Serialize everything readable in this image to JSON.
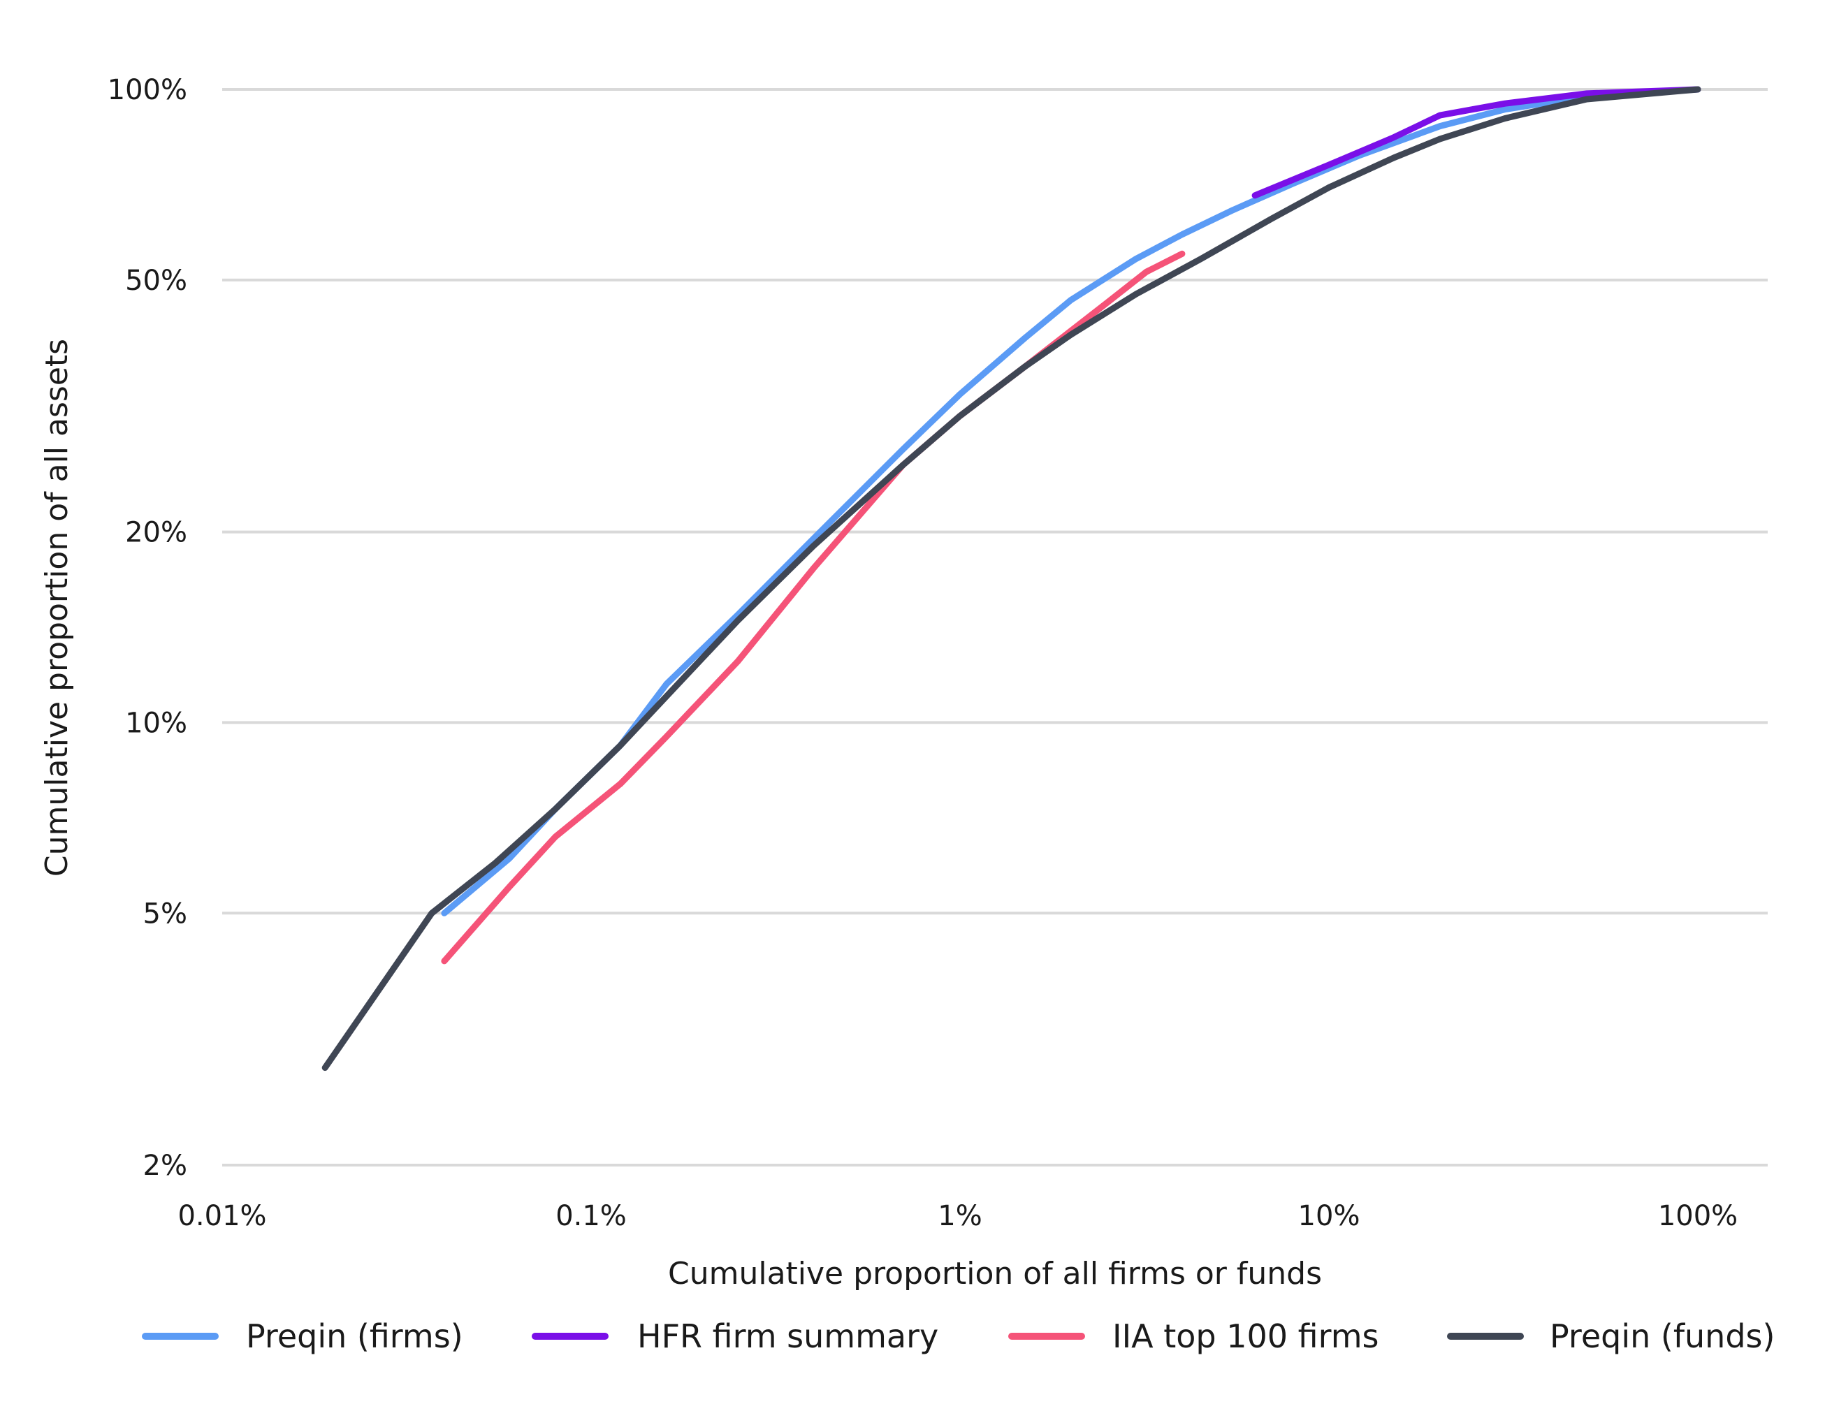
{
  "chart_data": {
    "type": "line",
    "xlabel": "Cumulative proportion of all firms or funds",
    "ylabel": "Cumulative proportion of all assets",
    "x_scale": "log",
    "y_scale": "log",
    "xlim": [
      0.01,
      100
    ],
    "ylim": [
      2,
      100
    ],
    "x_ticks": [
      0.01,
      0.1,
      1,
      10,
      100
    ],
    "x_tick_labels": [
      "0.01%",
      "0.1%",
      "1%",
      "10%",
      "100%"
    ],
    "y_ticks": [
      2,
      5,
      10,
      20,
      50,
      100
    ],
    "y_tick_labels": [
      "2%",
      "5%",
      "10%",
      "20%",
      "50%",
      "100%"
    ],
    "grid": "horizontal",
    "legend_position": "bottom",
    "series": [
      {
        "name": "Preqin (firms)",
        "color": "#5b9bf5",
        "x": [
          0.04,
          0.06,
          0.08,
          0.12,
          0.16,
          0.25,
          0.4,
          0.7,
          1.0,
          1.5,
          2.0,
          3.0,
          4.0,
          5.5,
          8.0,
          12,
          20,
          30,
          50,
          100
        ],
        "y": [
          5.0,
          6.1,
          7.3,
          9.2,
          11.5,
          14.8,
          19.5,
          27.0,
          33.0,
          40.5,
          46.5,
          54.0,
          59.0,
          64.5,
          71.0,
          78.5,
          87.5,
          93.0,
          97.5,
          100
        ]
      },
      {
        "name": "HFR firm summary",
        "color": "#7a0fe8",
        "x": [
          6.3,
          10,
          15,
          20,
          30,
          50,
          100
        ],
        "y": [
          68.0,
          76.0,
          84.0,
          91.0,
          95.0,
          98.5,
          100
        ]
      },
      {
        "name": "IIA top 100 firms",
        "color": "#f55378",
        "x": [
          0.04,
          0.06,
          0.08,
          0.12,
          0.16,
          0.25,
          0.4,
          0.7,
          1.0,
          1.5,
          2.5,
          3.2,
          4.0
        ],
        "y": [
          4.2,
          5.5,
          6.6,
          8.0,
          9.5,
          12.5,
          17.5,
          25.5,
          30.5,
          36.5,
          46.0,
          51.5,
          55.0
        ]
      },
      {
        "name": "Preqin (funds)",
        "color": "#3f4654",
        "x": [
          0.019,
          0.037,
          0.055,
          0.08,
          0.12,
          0.16,
          0.25,
          0.4,
          0.7,
          1.0,
          1.5,
          2.0,
          3.0,
          4.5,
          7.0,
          10,
          15,
          20,
          30,
          50,
          100
        ],
        "y": [
          2.85,
          5.0,
          6.0,
          7.3,
          9.2,
          11.0,
          14.5,
          19.0,
          25.5,
          30.5,
          36.5,
          41.0,
          47.5,
          54.0,
          62.5,
          70.0,
          78.0,
          83.5,
          90.0,
          96.5,
          100
        ]
      }
    ]
  }
}
